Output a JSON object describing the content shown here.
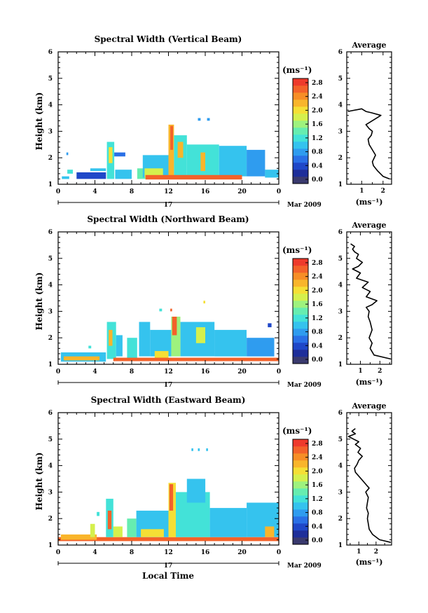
{
  "colorbar": {
    "unit": "(ms⁻¹)",
    "ticks": [
      "2.8",
      "2.4",
      "2.0",
      "1.6",
      "1.2",
      "0.8",
      "0.4",
      "0.0"
    ],
    "colors": [
      "#3a3a6e",
      "#1e2e9a",
      "#1f47c8",
      "#2a70e6",
      "#2f9cef",
      "#35c3ee",
      "#43e2d8",
      "#66edb0",
      "#9ef27e",
      "#d5f04d",
      "#f5df35",
      "#f9b52b",
      "#f78e26",
      "#f3622a",
      "#ee3a2c"
    ]
  },
  "date_label": "Mar 2009",
  "day_label": "17",
  "xlabel": "Local Time",
  "chart_data": [
    {
      "type": "heatmap",
      "title": "Spectral Width (Vertical Beam)",
      "ylabel": "Height (km)",
      "xticks": [
        "0",
        "4",
        "8",
        "12",
        "16",
        "20",
        "0"
      ],
      "yticks": [
        "1",
        "2",
        "3",
        "4",
        "5",
        "6"
      ],
      "xlim": [
        0,
        24
      ],
      "ylim": [
        1,
        6
      ],
      "clim": [
        0,
        3.0
      ],
      "blobs": [
        {
          "x0": 0.4,
          "x1": 1.2,
          "y0": 1.2,
          "y1": 1.3,
          "v": 1.2
        },
        {
          "x0": 1.0,
          "x1": 1.6,
          "y0": 1.4,
          "y1": 1.55,
          "v": 1.4
        },
        {
          "x0": 0.9,
          "x1": 1.1,
          "y0": 2.1,
          "y1": 2.2,
          "v": 0.8
        },
        {
          "x0": 2.0,
          "x1": 5.2,
          "y0": 1.2,
          "y1": 1.45,
          "v": 0.6
        },
        {
          "x0": 3.5,
          "x1": 5.2,
          "y0": 1.5,
          "y1": 1.6,
          "v": 1.0
        },
        {
          "x0": 5.3,
          "x1": 6.1,
          "y0": 1.2,
          "y1": 2.6,
          "v": 1.3
        },
        {
          "x0": 5.5,
          "x1": 5.9,
          "y0": 1.8,
          "y1": 2.4,
          "v": 2.0
        },
        {
          "x0": 6.1,
          "x1": 7.3,
          "y0": 2.05,
          "y1": 2.2,
          "v": 0.7
        },
        {
          "x0": 6.2,
          "x1": 8.0,
          "y0": 1.2,
          "y1": 1.55,
          "v": 1.2
        },
        {
          "x0": 8.6,
          "x1": 9.5,
          "y0": 1.2,
          "y1": 1.6,
          "v": 1.5
        },
        {
          "x0": 9.2,
          "x1": 12.0,
          "y0": 1.25,
          "y1": 2.1,
          "v": 1.2
        },
        {
          "x0": 9.4,
          "x1": 11.4,
          "y0": 1.25,
          "y1": 1.6,
          "v": 1.8
        },
        {
          "x0": 12.0,
          "x1": 12.6,
          "y0": 1.3,
          "y1": 3.25,
          "v": 2.2
        },
        {
          "x0": 12.2,
          "x1": 12.5,
          "y0": 2.3,
          "y1": 3.2,
          "v": 2.8
        },
        {
          "x0": 12.6,
          "x1": 14.0,
          "y0": 1.3,
          "y1": 2.85,
          "v": 1.3
        },
        {
          "x0": 13.0,
          "x1": 13.6,
          "y0": 2.0,
          "y1": 2.6,
          "v": 2.4
        },
        {
          "x0": 14.0,
          "x1": 17.5,
          "y0": 1.3,
          "y1": 2.5,
          "v": 1.4
        },
        {
          "x0": 15.5,
          "x1": 16.0,
          "y0": 1.5,
          "y1": 2.2,
          "v": 2.2
        },
        {
          "x0": 17.5,
          "x1": 20.5,
          "y0": 1.3,
          "y1": 2.45,
          "v": 1.2
        },
        {
          "x0": 20.5,
          "x1": 22.5,
          "y0": 1.3,
          "y1": 2.3,
          "v": 0.9
        },
        {
          "x0": 22.5,
          "x1": 24.0,
          "y0": 1.25,
          "y1": 1.55,
          "v": 1.1
        },
        {
          "x0": 9.5,
          "x1": 20.0,
          "y0": 1.18,
          "y1": 1.35,
          "v": 2.8
        },
        {
          "x0": 15.2,
          "x1": 15.5,
          "y0": 3.4,
          "y1": 3.5,
          "v": 0.9
        },
        {
          "x0": 16.2,
          "x1": 16.5,
          "y0": 3.4,
          "y1": 3.5,
          "v": 0.9
        }
      ]
    },
    {
      "type": "heatmap",
      "title": "Spectral Width (Northward Beam)",
      "ylabel": "Height (km)",
      "xticks": [
        "0",
        "4",
        "8",
        "12",
        "16",
        "20",
        "0"
      ],
      "yticks": [
        "1",
        "2",
        "3",
        "4",
        "5",
        "6"
      ],
      "xlim": [
        0,
        24
      ],
      "ylim": [
        1,
        6
      ],
      "clim": [
        0,
        3.0
      ],
      "blobs": [
        {
          "x0": 0.3,
          "x1": 5.2,
          "y0": 1.1,
          "y1": 1.45,
          "v": 1.2
        },
        {
          "x0": 0.6,
          "x1": 4.5,
          "y0": 1.15,
          "y1": 1.3,
          "v": 2.2
        },
        {
          "x0": 3.3,
          "x1": 3.6,
          "y0": 1.6,
          "y1": 1.7,
          "v": 1.4
        },
        {
          "x0": 5.3,
          "x1": 6.3,
          "y0": 1.2,
          "y1": 2.6,
          "v": 1.4
        },
        {
          "x0": 5.5,
          "x1": 5.9,
          "y0": 1.7,
          "y1": 2.3,
          "v": 2.4
        },
        {
          "x0": 6.3,
          "x1": 7.0,
          "y0": 1.3,
          "y1": 2.1,
          "v": 1.1
        },
        {
          "x0": 7.5,
          "x1": 8.6,
          "y0": 1.2,
          "y1": 2.0,
          "v": 1.3
        },
        {
          "x0": 8.8,
          "x1": 10.0,
          "y0": 1.3,
          "y1": 2.6,
          "v": 1.1
        },
        {
          "x0": 10.0,
          "x1": 12.3,
          "y0": 1.3,
          "y1": 2.3,
          "v": 1.0
        },
        {
          "x0": 10.5,
          "x1": 12.0,
          "y0": 1.2,
          "y1": 1.5,
          "v": 2.0
        },
        {
          "x0": 12.3,
          "x1": 13.3,
          "y0": 1.3,
          "y1": 2.8,
          "v": 1.6
        },
        {
          "x0": 12.4,
          "x1": 12.9,
          "y0": 2.1,
          "y1": 2.8,
          "v": 2.6
        },
        {
          "x0": 13.3,
          "x1": 17.0,
          "y0": 1.3,
          "y1": 2.6,
          "v": 1.2
        },
        {
          "x0": 15.0,
          "x1": 16.0,
          "y0": 1.8,
          "y1": 2.4,
          "v": 1.8
        },
        {
          "x0": 17.0,
          "x1": 20.5,
          "y0": 1.3,
          "y1": 2.3,
          "v": 1.1
        },
        {
          "x0": 20.5,
          "x1": 23.5,
          "y0": 1.3,
          "y1": 2.0,
          "v": 0.9
        },
        {
          "x0": 22.8,
          "x1": 23.2,
          "y0": 2.4,
          "y1": 2.55,
          "v": 0.6
        },
        {
          "x0": 6.0,
          "x1": 24.0,
          "y0": 1.12,
          "y1": 1.25,
          "v": 2.6
        },
        {
          "x0": 11.0,
          "x1": 11.3,
          "y0": 3.0,
          "y1": 3.1,
          "v": 1.4
        },
        {
          "x0": 12.2,
          "x1": 12.4,
          "y0": 3.0,
          "y1": 3.1,
          "v": 2.6
        },
        {
          "x0": 15.8,
          "x1": 16.0,
          "y0": 3.3,
          "y1": 3.4,
          "v": 2.0
        }
      ]
    },
    {
      "type": "heatmap",
      "title": "Spectral Width (Eastward Beam)",
      "ylabel": "Height (km)",
      "xticks": [
        "0",
        "4",
        "8",
        "12",
        "16",
        "20",
        "0"
      ],
      "yticks": [
        "1",
        "2",
        "3",
        "4",
        "5",
        "6"
      ],
      "xlim": [
        0,
        24
      ],
      "ylim": [
        1,
        6
      ],
      "clim": [
        0,
        3.0
      ],
      "blobs": [
        {
          "x0": 0.0,
          "x1": 24.0,
          "y0": 1.15,
          "y1": 1.3,
          "v": 2.6
        },
        {
          "x0": 0.3,
          "x1": 4.2,
          "y0": 1.2,
          "y1": 1.4,
          "v": 2.2
        },
        {
          "x0": 3.5,
          "x1": 4.0,
          "y0": 1.3,
          "y1": 1.8,
          "v": 1.8
        },
        {
          "x0": 4.2,
          "x1": 4.5,
          "y0": 2.1,
          "y1": 2.25,
          "v": 1.4
        },
        {
          "x0": 5.2,
          "x1": 6.0,
          "y0": 1.3,
          "y1": 2.75,
          "v": 1.4
        },
        {
          "x0": 5.4,
          "x1": 5.8,
          "y0": 1.6,
          "y1": 2.3,
          "v": 2.6
        },
        {
          "x0": 6.0,
          "x1": 7.0,
          "y0": 1.3,
          "y1": 1.7,
          "v": 1.8
        },
        {
          "x0": 7.5,
          "x1": 8.5,
          "y0": 1.3,
          "y1": 2.0,
          "v": 1.5
        },
        {
          "x0": 8.5,
          "x1": 12.0,
          "y0": 1.3,
          "y1": 2.3,
          "v": 1.2
        },
        {
          "x0": 9.0,
          "x1": 11.5,
          "y0": 1.3,
          "y1": 1.6,
          "v": 2.0
        },
        {
          "x0": 12.0,
          "x1": 12.8,
          "y0": 1.3,
          "y1": 3.35,
          "v": 2.0
        },
        {
          "x0": 12.1,
          "x1": 12.5,
          "y0": 2.3,
          "y1": 3.3,
          "v": 2.8
        },
        {
          "x0": 12.8,
          "x1": 16.5,
          "y0": 1.3,
          "y1": 3.0,
          "v": 1.4
        },
        {
          "x0": 14.0,
          "x1": 16.0,
          "y0": 2.6,
          "y1": 3.5,
          "v": 1.0
        },
        {
          "x0": 16.5,
          "x1": 20.5,
          "y0": 1.3,
          "y1": 2.4,
          "v": 1.2
        },
        {
          "x0": 20.5,
          "x1": 24.0,
          "y0": 1.3,
          "y1": 2.6,
          "v": 1.0
        },
        {
          "x0": 22.5,
          "x1": 23.5,
          "y0": 1.3,
          "y1": 1.7,
          "v": 2.2
        },
        {
          "x0": 14.5,
          "x1": 14.7,
          "y0": 4.55,
          "y1": 4.65,
          "v": 1.1
        },
        {
          "x0": 15.2,
          "x1": 15.4,
          "y0": 4.55,
          "y1": 4.65,
          "v": 1.1
        },
        {
          "x0": 16.1,
          "x1": 16.3,
          "y0": 4.55,
          "y1": 4.65,
          "v": 1.1
        }
      ]
    },
    {
      "type": "line",
      "title": "Average",
      "ylabel": "",
      "xlabel": "(ms⁻¹)",
      "xticks": [
        "1",
        "2"
      ],
      "yticks": [
        "1",
        "2",
        "3",
        "4",
        "5",
        "6"
      ],
      "xlim": [
        0.3,
        2.4
      ],
      "ylim": [
        1,
        6
      ],
      "series": [
        {
          "x": [
            2.3,
            2.0,
            1.75,
            1.55,
            1.5,
            1.65,
            1.5,
            1.35,
            1.3,
            1.45,
            1.5,
            1.35,
            1.2,
            1.4,
            1.9,
            1.45,
            1.2,
            1.0,
            0.35
          ],
          "y": [
            1.2,
            1.3,
            1.5,
            1.7,
            1.85,
            2.1,
            2.3,
            2.5,
            2.7,
            2.85,
            3.0,
            3.1,
            3.25,
            3.35,
            3.6,
            3.7,
            3.75,
            3.85,
            3.75
          ]
        }
      ]
    },
    {
      "type": "line",
      "title": "Average",
      "ylabel": "",
      "xlabel": "(ms⁻¹)",
      "xticks": [
        "1",
        "2"
      ],
      "yticks": [
        "1",
        "2",
        "3",
        "4",
        "5",
        "6"
      ],
      "xlim": [
        0.3,
        2.6
      ],
      "ylim": [
        1,
        6
      ],
      "series": [
        {
          "x": [
            2.55,
            1.7,
            1.5,
            1.6,
            1.45,
            1.6,
            1.5,
            1.4,
            1.45,
            1.3,
            1.6,
            1.85,
            1.3,
            1.5,
            1.1,
            1.4,
            0.8,
            1.0,
            0.6,
            0.9,
            1.1,
            0.8,
            0.9,
            0.7,
            0.6,
            0.7,
            0.5
          ],
          "y": [
            1.2,
            1.35,
            1.6,
            1.8,
            2.0,
            2.3,
            2.6,
            2.8,
            3.0,
            3.15,
            3.25,
            3.4,
            3.55,
            3.75,
            3.9,
            4.1,
            4.25,
            4.45,
            4.6,
            4.7,
            4.85,
            5.0,
            5.15,
            5.25,
            5.35,
            5.45,
            5.55
          ]
        }
      ]
    },
    {
      "type": "line",
      "title": "Average",
      "ylabel": "",
      "xlabel": "(ms⁻¹)",
      "xticks": [
        "1",
        "2"
      ],
      "yticks": [
        "1",
        "2",
        "3",
        "4",
        "5",
        "6"
      ],
      "xlim": [
        0.3,
        2.9
      ],
      "ylim": [
        1,
        6
      ],
      "series": [
        {
          "x": [
            2.85,
            2.2,
            1.8,
            1.6,
            1.55,
            1.5,
            1.55,
            1.45,
            1.5,
            1.55,
            1.4,
            1.6,
            1.4,
            1.2,
            1.0,
            0.8,
            0.75,
            0.9,
            1.0,
            1.2,
            0.95,
            1.1,
            0.8,
            1.0,
            0.7,
            0.4,
            0.8,
            0.6,
            0.8
          ],
          "y": [
            1.1,
            1.2,
            1.4,
            1.6,
            1.8,
            2.0,
            2.2,
            2.4,
            2.6,
            2.8,
            3.0,
            3.15,
            3.3,
            3.45,
            3.6,
            3.75,
            3.9,
            4.05,
            4.2,
            4.35,
            4.5,
            4.65,
            4.8,
            4.9,
            5.0,
            5.1,
            5.2,
            5.3,
            5.4
          ]
        }
      ]
    }
  ]
}
